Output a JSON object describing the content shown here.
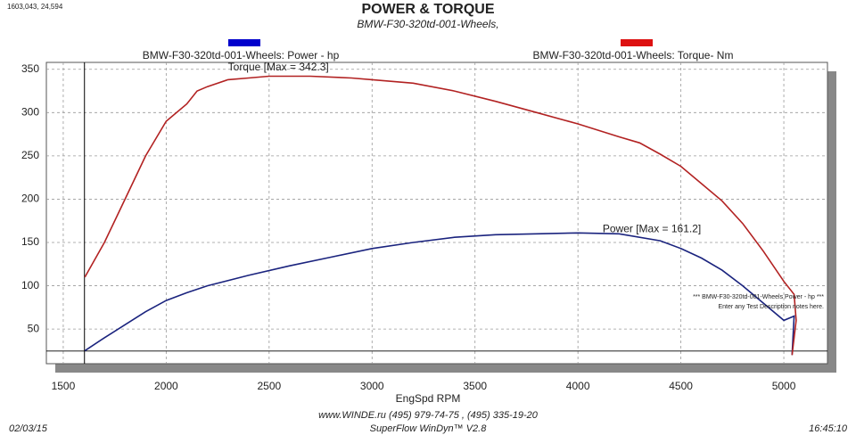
{
  "chart_data": {
    "type": "line",
    "title": "POWER & TORQUE",
    "subtitle": "BMW-F30-320td-001-Wheels,",
    "cursor_label": "1603,043, 24,594",
    "cursor": {
      "x": 1603.043,
      "y": 24.594
    },
    "x_label": "EngSpd RPM",
    "xlim": [
      1418,
      5212
    ],
    "ylim": [
      10,
      358
    ],
    "xticks": [
      1500,
      2000,
      2500,
      3000,
      3500,
      4000,
      4500,
      5000
    ],
    "yticks": [
      50,
      100,
      150,
      200,
      250,
      300,
      350
    ],
    "grid": true,
    "series": [
      {
        "name": "BMW-F30-320td-001-Wheels: Power - hp",
        "color": "#1a237e",
        "legend_color": "#0000cc",
        "x": [
          1605,
          1700,
          1800,
          1900,
          2000,
          2100,
          2200,
          2400,
          2600,
          2800,
          3000,
          3200,
          3400,
          3600,
          3800,
          4000,
          4200,
          4400,
          4500,
          4600,
          4700,
          4800,
          4900,
          5000,
          5050,
          5040
        ],
        "values": [
          25,
          40,
          55,
          70,
          83,
          92,
          100,
          112,
          123,
          133,
          143,
          150,
          156,
          159,
          160,
          161,
          160,
          152,
          143,
          132,
          118,
          100,
          80,
          60,
          65,
          20
        ]
      },
      {
        "name": "BMW-F30-320td-001-Wheels: Torque- Nm",
        "color": "#b22222",
        "legend_color": "#dd1111",
        "x": [
          1605,
          1700,
          1800,
          1900,
          1950,
          2000,
          2100,
          2150,
          2200,
          2300,
          2400,
          2500,
          2700,
          2900,
          3000,
          3200,
          3400,
          3600,
          3800,
          4000,
          4200,
          4300,
          4400,
          4500,
          4600,
          4700,
          4800,
          4900,
          5000,
          5050,
          5060,
          5040
        ],
        "values": [
          110,
          150,
          200,
          250,
          270,
          290,
          310,
          325,
          330,
          338,
          340,
          342,
          342,
          340,
          338,
          334,
          325,
          313,
          300,
          287,
          272,
          265,
          252,
          238,
          218,
          198,
          172,
          140,
          105,
          90,
          60,
          20
        ]
      }
    ],
    "annotations": [
      {
        "text": "Torque [Max = 342.3]",
        "x": 2300,
        "y": 352,
        "color": "#b22222"
      },
      {
        "text": "Power  [Max = 161.2]",
        "x": 4120,
        "y": 165,
        "color": "#1a237e"
      }
    ],
    "notes": [
      "*** BMW-F30-320td-001-Wheels Power - hp  ***",
      "Enter any Test Description notes here."
    ],
    "footer": {
      "site": "www.WINDE.ru  (495) 979-74-75 , (495) 335-19-20",
      "software": "SuperFlow WinDyn™ V2.8",
      "date": "02/03/15",
      "time": "16:45:10"
    }
  }
}
